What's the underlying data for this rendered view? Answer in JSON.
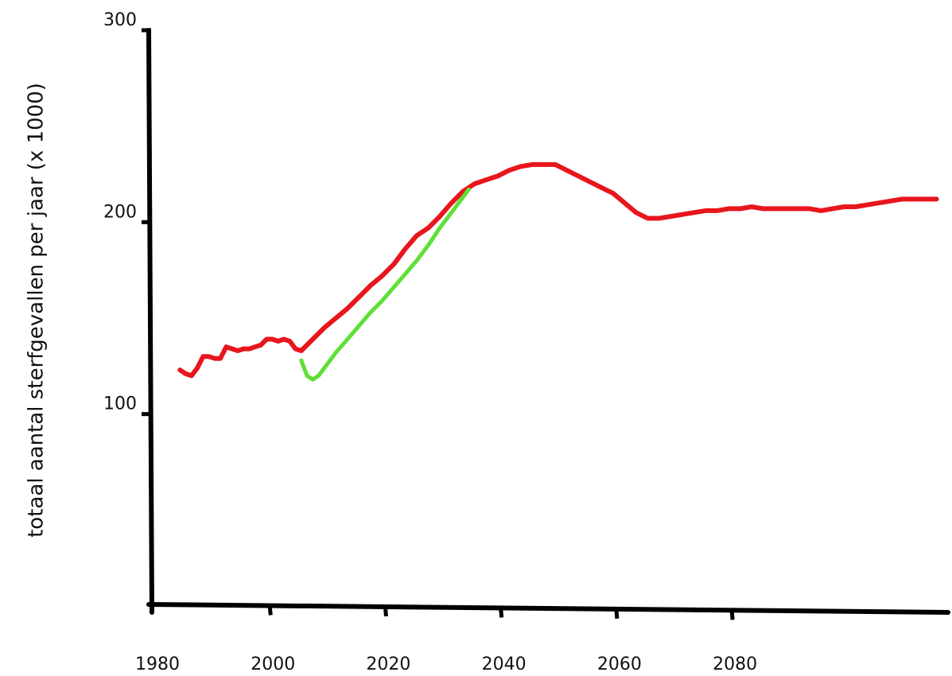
{
  "chart_data": {
    "type": "line",
    "title": "",
    "xlabel": "",
    "ylabel": "totaal aantal sterfgevallen per jaar (x 1000)",
    "xlim": [
      1980,
      2118
    ],
    "ylim": [
      0,
      300
    ],
    "x_ticks": [
      1980,
      2000,
      2020,
      2040,
      2060,
      2080
    ],
    "x_tick_labels": [
      "1980",
      "2000",
      "2020",
      "2040",
      "2060",
      "2080"
    ],
    "y_ticks": [
      100,
      200,
      300
    ],
    "y_tick_labels": [
      "100",
      "200",
      "300"
    ],
    "grid": false,
    "legend": "none",
    "series": [
      {
        "color": "#e8161c",
        "x": [
          1985,
          1986,
          1987,
          1988,
          1989,
          1990,
          1991,
          1992,
          1993,
          1994,
          1995,
          1996,
          1997,
          1998,
          1999,
          2000,
          2001,
          2002,
          2003,
          2004,
          2005,
          2006,
          2008,
          2010,
          2012,
          2014,
          2016,
          2018,
          2020,
          2022,
          2024,
          2026,
          2028,
          2030,
          2032,
          2034,
          2036,
          2038,
          2040,
          2042,
          2044,
          2046,
          2048,
          2050,
          2052,
          2054,
          2056,
          2058,
          2060,
          2062,
          2064,
          2066,
          2068,
          2070,
          2072,
          2074,
          2076,
          2078,
          2080,
          2082,
          2084,
          2086,
          2088,
          2090,
          2092,
          2094,
          2096,
          2098,
          2100,
          2102,
          2104,
          2106,
          2108,
          2110,
          2112,
          2114,
          2116
        ],
        "y": [
          123,
          121,
          120,
          124,
          130,
          130,
          129,
          129,
          135,
          134,
          133,
          134,
          134,
          135,
          136,
          139,
          139,
          138,
          139,
          138,
          134,
          133,
          139,
          145,
          150,
          155,
          161,
          167,
          172,
          178,
          186,
          193,
          197,
          203,
          210,
          216,
          220,
          222,
          224,
          227,
          229,
          230,
          230,
          230,
          227,
          224,
          221,
          218,
          215,
          210,
          205,
          202,
          202,
          203,
          204,
          205,
          206,
          206,
          207,
          207,
          208,
          207,
          207,
          207,
          207,
          207,
          206,
          207,
          208,
          208,
          209,
          210,
          211,
          212,
          212,
          212,
          212
        ]
      },
      {
        "color": "#5ee036",
        "x": [
          2006,
          2007,
          2008,
          2009,
          2010,
          2012,
          2014,
          2016,
          2018,
          2020,
          2022,
          2024,
          2026,
          2028,
          2030,
          2032,
          2034,
          2035
        ],
        "y": [
          128,
          120,
          118,
          120,
          124,
          132,
          139,
          146,
          153,
          159,
          166,
          173,
          180,
          188,
          197,
          205,
          213,
          217
        ]
      }
    ]
  }
}
